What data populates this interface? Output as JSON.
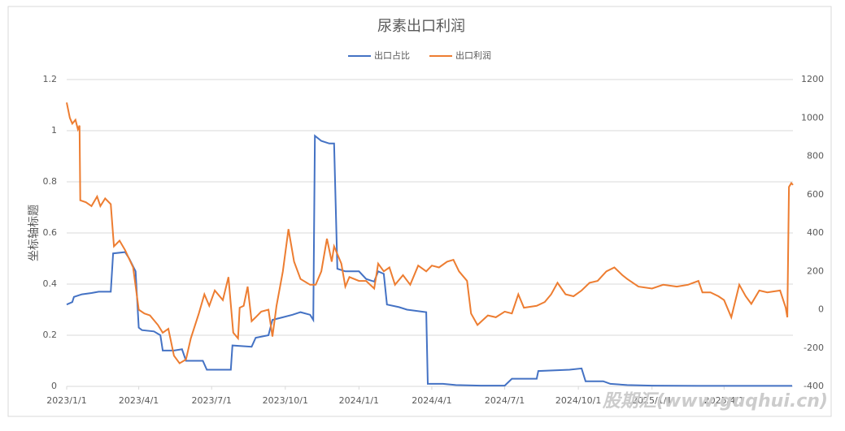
{
  "chart_data": {
    "type": "line",
    "title": "尿素出口利润",
    "ylabel": "坐标轴标题",
    "watermark": "股期汇(www.guqhui.cn)",
    "legend": "top",
    "grid": true,
    "xlim": [
      "2023/1/1",
      "2025/6/26"
    ],
    "xticks": [
      "2023/1/1",
      "2023/4/1",
      "2023/7/1",
      "2023/10/1",
      "2024/1/1",
      "2024/4/1",
      "2024/7/1",
      "2024/10/1",
      "2025/1/1",
      "2025/4/1"
    ],
    "ylim": [
      0,
      1.2
    ],
    "yticks": [
      0,
      0.2,
      0.4,
      0.6,
      0.8,
      1,
      1.2
    ],
    "y2lim": [
      -400,
      1200
    ],
    "y2ticks": [
      -400,
      -200,
      0,
      200,
      400,
      600,
      800,
      1000,
      1200
    ],
    "series": [
      {
        "name": "出口占比",
        "color": "#4472c4",
        "axis": "y",
        "x": [
          "2023/1/1",
          "2023/1/8",
          "2023/1/10",
          "2023/1/20",
          "2023/2/1",
          "2023/2/10",
          "2023/2/25",
          "2023/2/28",
          "2023/3/15",
          "2023/3/20",
          "2023/3/28",
          "2023/4/1",
          "2023/4/5",
          "2023/4/20",
          "2023/4/28",
          "2023/5/1",
          "2023/5/15",
          "2023/5/25",
          "2023/5/30",
          "2023/6/20",
          "2023/6/25",
          "2023/7/20",
          "2023/7/25",
          "2023/7/27",
          "2023/8/20",
          "2023/8/25",
          "2023/9/10",
          "2023/9/15",
          "2023/9/28",
          "2023/10/10",
          "2023/10/20",
          "2023/11/1",
          "2023/11/5",
          "2023/11/7",
          "2023/11/15",
          "2023/11/25",
          "2023/12/1",
          "2023/12/5",
          "2023/12/15",
          "2024/1/1",
          "2024/1/10",
          "2024/1/20",
          "2024/1/25",
          "2024/2/1",
          "2024/2/5",
          "2024/2/20",
          "2024/3/1",
          "2024/3/25",
          "2024/3/27",
          "2024/4/15",
          "2024/5/1",
          "2024/6/1",
          "2024/7/1",
          "2024/7/10",
          "2024/8/10",
          "2024/8/12",
          "2024/9/20",
          "2024/10/5",
          "2024/10/10",
          "2024/11/1",
          "2024/11/10",
          "2024/12/1",
          "2025/1/1",
          "2025/3/1",
          "2025/6/25"
        ],
        "values": [
          0.32,
          0.33,
          0.35,
          0.36,
          0.365,
          0.37,
          0.37,
          0.52,
          0.525,
          0.5,
          0.45,
          0.23,
          0.22,
          0.215,
          0.2,
          0.14,
          0.14,
          0.145,
          0.1,
          0.1,
          0.065,
          0.065,
          0.065,
          0.16,
          0.155,
          0.19,
          0.2,
          0.26,
          0.27,
          0.28,
          0.29,
          0.28,
          0.26,
          0.98,
          0.96,
          0.95,
          0.95,
          0.46,
          0.45,
          0.45,
          0.42,
          0.41,
          0.45,
          0.44,
          0.32,
          0.31,
          0.3,
          0.29,
          0.01,
          0.01,
          0.005,
          0.003,
          0.003,
          0.03,
          0.03,
          0.06,
          0.065,
          0.07,
          0.02,
          0.02,
          0.01,
          0.005,
          0.003,
          0.002,
          0.002
        ]
      },
      {
        "name": "出口利润",
        "color": "#ed7d31",
        "axis": "y2",
        "x": [
          "2023/1/1",
          "2023/1/5",
          "2023/1/8",
          "2023/1/12",
          "2023/1/15",
          "2023/1/17",
          "2023/1/18",
          "2023/1/25",
          "2023/2/1",
          "2023/2/8",
          "2023/2/12",
          "2023/2/18",
          "2023/2/25",
          "2023/3/1",
          "2023/3/8",
          "2023/3/15",
          "2023/3/25",
          "2023/4/1",
          "2023/4/8",
          "2023/4/15",
          "2023/4/25",
          "2023/5/1",
          "2023/5/8",
          "2023/5/15",
          "2023/5/22",
          "2023/5/30",
          "2023/6/5",
          "2023/6/15",
          "2023/6/22",
          "2023/6/28",
          "2023/7/5",
          "2023/7/15",
          "2023/7/22",
          "2023/7/28",
          "2023/8/3",
          "2023/8/5",
          "2023/8/10",
          "2023/8/15",
          "2023/8/20",
          "2023/8/25",
          "2023/9/1",
          "2023/9/10",
          "2023/9/15",
          "2023/9/20",
          "2023/9/28",
          "2023/10/5",
          "2023/10/12",
          "2023/10/20",
          "2023/11/1",
          "2023/11/8",
          "2023/11/15",
          "2023/11/22",
          "2023/11/28",
          "2023/12/1",
          "2023/12/5",
          "2023/12/10",
          "2023/12/15",
          "2023/12/20",
          "2024/1/1",
          "2024/1/10",
          "2024/1/20",
          "2024/1/25",
          "2024/2/1",
          "2024/2/8",
          "2024/2/15",
          "2024/2/25",
          "2024/3/5",
          "2024/3/15",
          "2024/3/25",
          "2024/4/1",
          "2024/4/10",
          "2024/4/20",
          "2024/4/28",
          "2024/5/5",
          "2024/5/15",
          "2024/5/20",
          "2024/5/28",
          "2024/6/10",
          "2024/6/20",
          "2024/7/1",
          "2024/7/10",
          "2024/7/18",
          "2024/7/25",
          "2024/8/10",
          "2024/8/20",
          "2024/8/28",
          "2024/9/5",
          "2024/9/15",
          "2024/9/25",
          "2024/10/5",
          "2024/10/15",
          "2024/10/25",
          "2024/11/5",
          "2024/11/15",
          "2024/11/25",
          "2024/12/1",
          "2024/12/15",
          "2025/1/1",
          "2025/1/15",
          "2025/2/1",
          "2025/2/15",
          "2025/2/28",
          "2025/3/5",
          "2025/3/15",
          "2025/3/25",
          "2025/4/1",
          "2025/4/10",
          "2025/4/20",
          "2025/4/28",
          "2025/5/5",
          "2025/5/15",
          "2025/5/25",
          "2025/6/10",
          "2025/6/17",
          "2025/6/19",
          "2025/6/21",
          "2025/6/24",
          "2025/6/26"
        ],
        "values": [
          1080,
          1000,
          970,
          990,
          940,
          960,
          570,
          560,
          540,
          590,
          540,
          580,
          550,
          330,
          360,
          310,
          220,
          0,
          -20,
          -30,
          -80,
          -120,
          -100,
          -240,
          -280,
          -260,
          -150,
          -20,
          80,
          20,
          100,
          50,
          170,
          -120,
          -150,
          10,
          20,
          120,
          -60,
          -40,
          -10,
          0,
          -140,
          20,
          200,
          420,
          250,
          160,
          130,
          130,
          200,
          370,
          250,
          330,
          290,
          240,
          120,
          170,
          150,
          150,
          110,
          240,
          200,
          220,
          130,
          180,
          130,
          230,
          200,
          230,
          220,
          250,
          260,
          200,
          150,
          -20,
          -80,
          -30,
          -40,
          -10,
          -20,
          80,
          10,
          20,
          40,
          80,
          140,
          80,
          70,
          100,
          140,
          150,
          200,
          220,
          180,
          160,
          120,
          110,
          130,
          120,
          130,
          150,
          90,
          90,
          70,
          50,
          -40,
          130,
          70,
          30,
          100,
          90,
          100,
          10,
          -40,
          640,
          660,
          650
        ]
      }
    ]
  }
}
